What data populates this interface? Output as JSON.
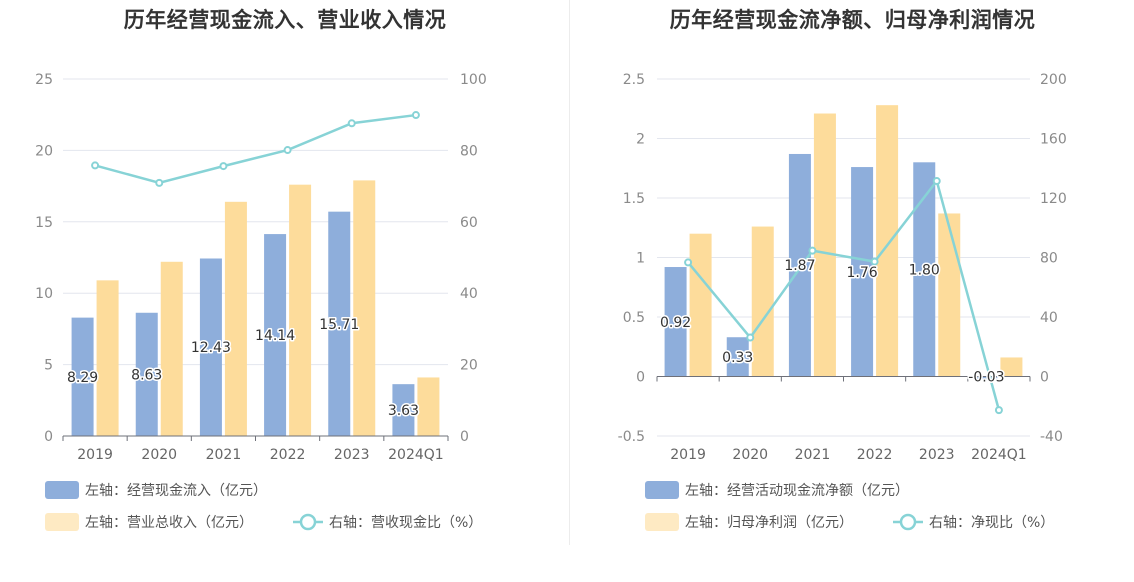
{
  "chart_data": [
    {
      "type": "bar",
      "title": "历年经营现金流入、营业收入情况",
      "categories": [
        "2019",
        "2020",
        "2021",
        "2022",
        "2023",
        "2024Q1"
      ],
      "left_axis": {
        "min": 0,
        "max": 25,
        "ticks": [
          0,
          5,
          10,
          15,
          20,
          25
        ]
      },
      "right_axis": {
        "min": 0,
        "max": 100,
        "ticks": [
          0,
          20,
          40,
          60,
          80,
          100
        ]
      },
      "series": [
        {
          "name": "左轴：经营现金流入（亿元）",
          "kind": "bar",
          "axis": "left",
          "color": "#8eaedb",
          "values": [
            8.29,
            8.63,
            12.43,
            14.14,
            15.71,
            3.63
          ],
          "labels": [
            "8.29",
            "8.63",
            "12.43",
            "14.14",
            "15.71",
            "3.63"
          ]
        },
        {
          "name": "左轴：营业总收入（亿元）",
          "kind": "bar",
          "axis": "left",
          "color": "#fddc9b",
          "values": [
            10.9,
            12.2,
            16.4,
            17.6,
            17.9,
            4.1
          ]
        },
        {
          "name": "右轴：营收现金比（%）",
          "kind": "line",
          "axis": "right",
          "color": "#87d3d6",
          "values": [
            75.8,
            70.9,
            75.6,
            80.1,
            87.6,
            89.9
          ]
        }
      ]
    },
    {
      "type": "bar",
      "title": "历年经营现金流净额、归母净利润情况",
      "categories": [
        "2019",
        "2020",
        "2021",
        "2022",
        "2023",
        "2024Q1"
      ],
      "left_axis": {
        "min": -0.5,
        "max": 2.5,
        "ticks": [
          -0.5,
          0,
          0.5,
          1,
          1.5,
          2,
          2.5
        ]
      },
      "right_axis": {
        "min": -40,
        "max": 200,
        "ticks": [
          -40,
          0,
          40,
          80,
          120,
          160,
          200
        ]
      },
      "series": [
        {
          "name": "左轴：经营活动现金流净额（亿元）",
          "kind": "bar",
          "axis": "left",
          "color": "#8eaedb",
          "values": [
            0.92,
            0.33,
            1.87,
            1.76,
            1.8,
            -0.03
          ],
          "labels": [
            "0.92",
            "0.33",
            "1.87",
            "1.76",
            "1.80",
            "-0.03"
          ]
        },
        {
          "name": "左轴：归母净利润（亿元）",
          "kind": "bar",
          "axis": "left",
          "color": "#fddc9b",
          "values": [
            1.2,
            1.26,
            2.21,
            2.28,
            1.37,
            0.16
          ]
        },
        {
          "name": "右轴：净现比（%）",
          "kind": "line",
          "axis": "right",
          "color": "#87d3d6",
          "values": [
            76.7,
            26.2,
            84.6,
            77.2,
            131.4,
            -22.6
          ]
        }
      ]
    }
  ]
}
